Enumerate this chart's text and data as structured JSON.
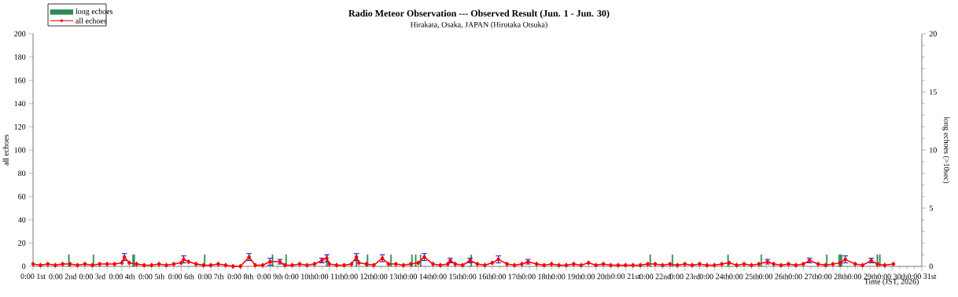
{
  "chart_data": {
    "type": "line",
    "title": "Radio Meteor Observation --- Observed Result (Jun. 1 - Jun. 30)",
    "subtitle": "Hirakata, Osaka, JAPAN (Hirotaka Otsuka)",
    "xlabel": "Time (JST, 2026)",
    "ylabel": "all echoes",
    "y2label": "long echoes (>10sec)",
    "xlim": [
      "2026-06-01T00:00",
      "2026-07-01T00:00"
    ],
    "xticks": [
      {
        "value": "2026-06-01T00:00",
        "label": "0:00 1st"
      },
      {
        "value": "2026-06-02T00:00",
        "label": "0:00 2nd"
      },
      {
        "value": "2026-06-03T00:00",
        "label": "0:00 3rd"
      },
      {
        "value": "2026-06-04T00:00",
        "label": "0:00 4th"
      },
      {
        "value": "2026-06-05T00:00",
        "label": "0:00 5th"
      },
      {
        "value": "2026-06-06T00:00",
        "label": "0:00 6th"
      },
      {
        "value": "2026-06-07T00:00",
        "label": "0:00 7th"
      },
      {
        "value": "2026-06-08T00:00",
        "label": "0:00 8th"
      },
      {
        "value": "2026-06-09T00:00",
        "label": "0:00 9th"
      },
      {
        "value": "2026-06-10T00:00",
        "label": "0:00 10th"
      },
      {
        "value": "2026-06-11T00:00",
        "label": "0:00 11th"
      },
      {
        "value": "2026-06-12T00:00",
        "label": "0:00 12th"
      },
      {
        "value": "2026-06-13T00:00",
        "label": "0:00 13th"
      },
      {
        "value": "2026-06-14T00:00",
        "label": "0:00 14th"
      },
      {
        "value": "2026-06-15T00:00",
        "label": "0:00 15th"
      },
      {
        "value": "2026-06-16T00:00",
        "label": "0:00 16th"
      },
      {
        "value": "2026-06-17T00:00",
        "label": "0:00 17th"
      },
      {
        "value": "2026-06-18T00:00",
        "label": "0:00 18th"
      },
      {
        "value": "2026-06-19T00:00",
        "label": "0:00 19th"
      },
      {
        "value": "2026-06-20T00:00",
        "label": "0:00 20th"
      },
      {
        "value": "2026-06-21T00:00",
        "label": "0:00 21st"
      },
      {
        "value": "2026-06-22T00:00",
        "label": "0:00 22nd"
      },
      {
        "value": "2026-06-23T00:00",
        "label": "0:00 23rd"
      },
      {
        "value": "2026-06-24T00:00",
        "label": "0:00 24th"
      },
      {
        "value": "2026-06-25T00:00",
        "label": "0:00 25th"
      },
      {
        "value": "2026-06-26T00:00",
        "label": "0:00 26th"
      },
      {
        "value": "2026-06-27T00:00",
        "label": "0:00 27th"
      },
      {
        "value": "2026-06-28T00:00",
        "label": "0:00 28th"
      },
      {
        "value": "2026-06-29T00:00",
        "label": "0:00 29th"
      },
      {
        "value": "2026-06-30T00:00",
        "label": "0:00 30th"
      },
      {
        "value": "2026-07-01T00:00",
        "label": "0:00 31st"
      }
    ],
    "ylim": [
      0,
      200
    ],
    "yticks": [
      0,
      20,
      40,
      60,
      80,
      100,
      120,
      140,
      160,
      180,
      200
    ],
    "y2lim": [
      0,
      20
    ],
    "y2ticks": [
      0,
      5,
      10,
      15,
      20
    ],
    "legend": "top left",
    "series": [
      {
        "name": "long echoes",
        "type": "bar",
        "axis": "y2",
        "color": "#2e8b57",
        "x": [
          "2026-06-02T05:00",
          "2026-06-03T01:00",
          "2026-06-04T09:00",
          "2026-06-04T10:00",
          "2026-06-06T19:00",
          "2026-06-09T02:00",
          "2026-06-09T13:00",
          "2026-06-10T22:00",
          "2026-06-11T22:00",
          "2026-06-12T07:00",
          "2026-06-13T02:00",
          "2026-06-13T19:00",
          "2026-06-13T22:00",
          "2026-06-14T02:00",
          "2026-06-15T19:00",
          "2026-06-21T20:00",
          "2026-06-22T14:00",
          "2026-06-24T11:00",
          "2026-06-25T14:00",
          "2026-06-27T19:00",
          "2026-06-28T05:00",
          "2026-06-28T06:00",
          "2026-06-28T07:00",
          "2026-06-29T12:00",
          "2026-06-29T14:00"
        ],
        "values": [
          1,
          1,
          1,
          1,
          1,
          1,
          1,
          1,
          1,
          1,
          1,
          1,
          1,
          1,
          1,
          1,
          1,
          1,
          1,
          1,
          1,
          1,
          1,
          1,
          1
        ]
      },
      {
        "name": "all echoes",
        "color": "#ff0000",
        "marker": "diamond",
        "line_style": "solid",
        "x": [
          "2026-06-01T00:00",
          "2026-06-01T06:00",
          "2026-06-01T12:00",
          "2026-06-01T18:00",
          "2026-06-02T00:00",
          "2026-06-02T06:00",
          "2026-06-02T12:00",
          "2026-06-02T18:00",
          "2026-06-03T00:00",
          "2026-06-03T06:00",
          "2026-06-03T12:00",
          "2026-06-03T18:00",
          "2026-06-04T00:00",
          "2026-06-04T02:00",
          "2026-06-04T06:00",
          "2026-06-04T12:00",
          "2026-06-04T18:00",
          "2026-06-05T00:00",
          "2026-06-05T06:00",
          "2026-06-05T12:00",
          "2026-06-05T18:00",
          "2026-06-06T00:00",
          "2026-06-06T02:00",
          "2026-06-06T06:00",
          "2026-06-06T12:00",
          "2026-06-06T18:00",
          "2026-06-07T00:00",
          "2026-06-07T06:00",
          "2026-06-07T12:00",
          "2026-06-07T18:00",
          "2026-06-08T00:00",
          "2026-06-08T07:00",
          "2026-06-08T12:00",
          "2026-06-08T18:00",
          "2026-06-09T00:00",
          "2026-06-09T08:00",
          "2026-06-09T12:00",
          "2026-06-09T18:00",
          "2026-06-10T00:00",
          "2026-06-10T06:00",
          "2026-06-10T12:00",
          "2026-06-10T18:00",
          "2026-06-10T22:00",
          "2026-06-11T00:00",
          "2026-06-11T06:00",
          "2026-06-11T12:00",
          "2026-06-11T18:00",
          "2026-06-11T22:00",
          "2026-06-12T00:00",
          "2026-06-12T06:00",
          "2026-06-12T12:00",
          "2026-06-12T19:00",
          "2026-06-13T00:00",
          "2026-06-13T06:00",
          "2026-06-13T12:00",
          "2026-06-13T18:00",
          "2026-06-14T00:00",
          "2026-06-14T05:00",
          "2026-06-14T12:00",
          "2026-06-14T18:00",
          "2026-06-15T00:00",
          "2026-06-15T02:00",
          "2026-06-15T06:00",
          "2026-06-15T12:00",
          "2026-06-15T18:00",
          "2026-06-16T00:00",
          "2026-06-16T06:00",
          "2026-06-16T12:00",
          "2026-06-16T17:00",
          "2026-06-17T00:00",
          "2026-06-17T06:00",
          "2026-06-17T12:00",
          "2026-06-17T17:00",
          "2026-06-18T00:00",
          "2026-06-18T06:00",
          "2026-06-18T12:00",
          "2026-06-18T18:00",
          "2026-06-19T00:00",
          "2026-06-19T06:00",
          "2026-06-19T12:00",
          "2026-06-19T18:00",
          "2026-06-20T00:00",
          "2026-06-20T06:00",
          "2026-06-20T12:00",
          "2026-06-20T18:00",
          "2026-06-21T00:00",
          "2026-06-21T06:00",
          "2026-06-21T12:00",
          "2026-06-21T18:00",
          "2026-06-22T00:00",
          "2026-06-22T06:00",
          "2026-06-22T12:00",
          "2026-06-22T18:00",
          "2026-06-23T00:00",
          "2026-06-23T06:00",
          "2026-06-23T12:00",
          "2026-06-23T18:00",
          "2026-06-24T00:00",
          "2026-06-24T06:00",
          "2026-06-24T12:00",
          "2026-06-24T18:00",
          "2026-06-25T00:00",
          "2026-06-25T06:00",
          "2026-06-25T12:00",
          "2026-06-25T19:00",
          "2026-06-26T00:00",
          "2026-06-26T06:00",
          "2026-06-26T12:00",
          "2026-06-26T18:00",
          "2026-06-27T00:00",
          "2026-06-27T05:00",
          "2026-06-27T12:00",
          "2026-06-27T18:00",
          "2026-06-28T00:00",
          "2026-06-28T06:00",
          "2026-06-28T10:00",
          "2026-06-28T18:00",
          "2026-06-29T00:00",
          "2026-06-29T07:00",
          "2026-06-29T12:00",
          "2026-06-29T18:00",
          "2026-06-30T01:00"
        ],
        "values": [
          2,
          1,
          2,
          1,
          2,
          2,
          1,
          2,
          1,
          2,
          2,
          2,
          3,
          8,
          3,
          2,
          1,
          1,
          2,
          1,
          2,
          3,
          6,
          4,
          2,
          1,
          1,
          2,
          1,
          0,
          0,
          8,
          1,
          1,
          4,
          4,
          1,
          1,
          2,
          1,
          2,
          5,
          7,
          2,
          1,
          1,
          2,
          8,
          3,
          2,
          1,
          7,
          2,
          2,
          1,
          2,
          3,
          8,
          2,
          1,
          2,
          5,
          2,
          1,
          5,
          2,
          1,
          3,
          6,
          2,
          1,
          2,
          4,
          2,
          1,
          2,
          1,
          1,
          2,
          1,
          3,
          1,
          2,
          1,
          1,
          1,
          1,
          1,
          2,
          2,
          1,
          2,
          1,
          2,
          1,
          2,
          1,
          1,
          2,
          3,
          1,
          2,
          1,
          2,
          4,
          2,
          1,
          2,
          1,
          2,
          5,
          2,
          1,
          2,
          3,
          6,
          2,
          1,
          5,
          2,
          1,
          2
        ],
        "errors": [
          null,
          null,
          null,
          null,
          null,
          null,
          null,
          null,
          null,
          null,
          null,
          null,
          null,
          3,
          null,
          null,
          null,
          null,
          null,
          null,
          null,
          null,
          3,
          null,
          null,
          null,
          null,
          null,
          null,
          null,
          null,
          3,
          null,
          null,
          3,
          2,
          null,
          null,
          null,
          null,
          null,
          2,
          3,
          null,
          null,
          null,
          null,
          3,
          null,
          null,
          null,
          3,
          null,
          null,
          null,
          null,
          null,
          3,
          null,
          null,
          null,
          2,
          null,
          null,
          2,
          null,
          null,
          null,
          3,
          null,
          null,
          null,
          2,
          null,
          null,
          null,
          null,
          null,
          null,
          null,
          null,
          null,
          null,
          null,
          null,
          null,
          null,
          null,
          null,
          null,
          null,
          null,
          null,
          null,
          null,
          null,
          null,
          null,
          null,
          null,
          null,
          null,
          null,
          null,
          2,
          null,
          null,
          null,
          null,
          null,
          2,
          null,
          null,
          null,
          null,
          3,
          null,
          null,
          2,
          null,
          null,
          null
        ]
      }
    ]
  }
}
